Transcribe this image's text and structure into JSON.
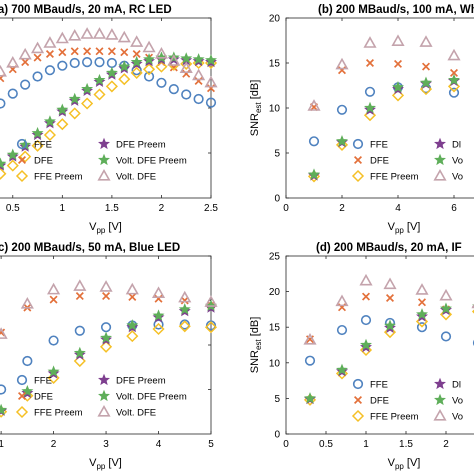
{
  "colors": {
    "FFE": "#4f82bf",
    "DFE": "#e3703a",
    "FFE Preem": "#f5c026",
    "DFE Preem": "#7e3f8f",
    "Volt. DFE Preem": "#5fae5a",
    "Volt. DFE": "#c4a3ac"
  },
  "chart_data": [
    {
      "type": "scatter",
      "title": "(a) 700 MBaud/s, 20 mA, RC LED",
      "xlabel": "V",
      "xlabel_sub": "pp",
      "xlabel_unit": " [V]",
      "ylabel": "",
      "xlim": [
        0.25,
        2.5
      ],
      "ylim": [
        0,
        20
      ],
      "xticks": [
        0.5,
        1,
        1.5,
        2,
        2.5
      ],
      "xtick_labels": [
        "0.5",
        "1",
        "1.5",
        "2",
        "2.5"
      ],
      "legend": [
        "FFE",
        "DFE",
        "FFE Preem",
        "DFE Preem",
        "Volt. DFE Preem",
        "Volt. DFE"
      ],
      "series": [
        {
          "name": "FFE",
          "x": [
            0.25,
            0.375,
            0.5,
            0.625,
            0.75,
            0.875,
            1.0,
            1.125,
            1.25,
            1.375,
            1.5,
            1.625,
            1.75,
            1.875,
            2.0,
            2.125,
            2.25,
            2.375,
            2.5
          ],
          "y": [
            9.3,
            10.5,
            11.6,
            12.6,
            13.5,
            14.2,
            14.7,
            15.0,
            15.1,
            15.1,
            15.0,
            14.7,
            14.2,
            13.5,
            12.8,
            12.1,
            11.5,
            11.0,
            10.6
          ]
        },
        {
          "name": "DFE",
          "x": [
            0.25,
            0.375,
            0.5,
            0.625,
            0.75,
            0.875,
            1.0,
            1.125,
            1.25,
            1.375,
            1.5,
            1.625,
            1.75,
            1.875,
            2.0,
            2.125,
            2.25,
            2.375,
            2.5
          ],
          "y": [
            12.0,
            13.3,
            14.3,
            15.1,
            15.6,
            16.0,
            16.2,
            16.3,
            16.3,
            16.3,
            16.3,
            16.2,
            16.0,
            15.6,
            15.1,
            14.5,
            13.8,
            13.0,
            12.2
          ]
        },
        {
          "name": "FFE Preem",
          "x": [
            0.375,
            0.5,
            0.625,
            0.75,
            0.875,
            1.0,
            1.125,
            1.25,
            1.375,
            1.5,
            1.625,
            1.75,
            1.875,
            2.0,
            2.125,
            2.25,
            2.375,
            2.5
          ],
          "y": [
            2.7,
            3.6,
            4.6,
            5.8,
            7.0,
            8.2,
            9.4,
            10.5,
            11.5,
            12.4,
            13.2,
            13.9,
            14.3,
            14.6,
            14.8,
            14.9,
            15.0,
            15.0
          ]
        },
        {
          "name": "DFE Preem",
          "x": [
            0.375,
            0.5,
            0.625,
            0.75,
            0.875,
            1.0,
            1.125,
            1.25,
            1.375,
            1.5,
            1.625,
            1.75,
            1.875,
            2.0,
            2.125,
            2.25,
            2.375,
            2.5
          ],
          "y": [
            3.6,
            4.6,
            5.7,
            7.0,
            8.3,
            9.6,
            10.8,
            11.9,
            12.9,
            13.7,
            14.4,
            14.9,
            15.2,
            15.4,
            15.4,
            15.3,
            15.2,
            15.1
          ]
        },
        {
          "name": "Volt. DFE Preem",
          "x": [
            0.375,
            0.5,
            0.625,
            0.75,
            0.875,
            1.0,
            1.125,
            1.25,
            1.375,
            1.5,
            1.625,
            1.75,
            1.875,
            2.0,
            2.125,
            2.25,
            2.375,
            2.5
          ],
          "y": [
            3.8,
            4.8,
            5.9,
            7.2,
            8.5,
            9.8,
            11.0,
            12.1,
            13.1,
            13.9,
            14.6,
            15.1,
            15.4,
            15.6,
            15.6,
            15.5,
            15.4,
            15.3
          ]
        },
        {
          "name": "Volt. DFE",
          "x": [
            0.25,
            0.375,
            0.5,
            0.625,
            0.75,
            0.875,
            1.0,
            1.125,
            1.25,
            1.375,
            1.5,
            1.625,
            1.75,
            1.875,
            2.0,
            2.125,
            2.25,
            2.375,
            2.5
          ],
          "y": [
            12.6,
            14.0,
            15.0,
            15.9,
            16.6,
            17.2,
            17.7,
            18.0,
            18.2,
            18.2,
            18.1,
            17.8,
            17.3,
            16.7,
            16.0,
            15.2,
            14.4,
            13.6,
            12.8
          ]
        }
      ]
    },
    {
      "type": "scatter",
      "title": "(b) 200 MBaud/s, 100 mA, Wh",
      "xlabel": "V",
      "xlabel_sub": "pp",
      "xlabel_unit": " [V]",
      "ylabel": "SNR",
      "ylabel_sub": "est",
      "ylabel_unit": " [dB]",
      "xlim": [
        0,
        8
      ],
      "ylim": [
        0,
        20
      ],
      "xticks": [
        0,
        2,
        4,
        6
      ],
      "xtick_labels": [
        "0",
        "2",
        "4",
        "6"
      ],
      "yticks": [
        0,
        5,
        10,
        15,
        20
      ],
      "ytick_labels": [
        "0",
        "5",
        "10",
        "15",
        "20"
      ],
      "legend": [
        "FFE",
        "DFE",
        "FFE Preem",
        "Dl",
        "Volt. DFE Preem",
        "Vo",
        "Volt. DFE",
        "Vo"
      ],
      "series": [
        {
          "name": "FFE",
          "x": [
            1,
            2,
            3,
            4,
            5,
            6,
            7
          ],
          "y": [
            6.3,
            9.8,
            11.8,
            12.3,
            12.2,
            11.7,
            11.2
          ]
        },
        {
          "name": "DFE",
          "x": [
            1,
            2,
            3,
            4,
            5,
            6,
            7
          ],
          "y": [
            10.1,
            14.2,
            15.0,
            14.9,
            14.6,
            13.9,
            13.3
          ]
        },
        {
          "name": "FFE Preem",
          "x": [
            1,
            2,
            3,
            4,
            5,
            6,
            7
          ],
          "y": [
            2.4,
            5.9,
            9.2,
            11.4,
            12.1,
            12.4,
            12.2
          ]
        },
        {
          "name": "DFE Preem",
          "x": [
            1,
            2,
            3,
            4,
            5,
            6,
            7
          ],
          "y": [
            2.5,
            6.2,
            9.8,
            12.1,
            12.7,
            13.0,
            12.8
          ]
        },
        {
          "name": "Volt. DFE Preem",
          "x": [
            1,
            2,
            3,
            4,
            5,
            6,
            7
          ],
          "y": [
            2.6,
            6.3,
            10.0,
            12.3,
            12.8,
            13.1,
            12.9
          ]
        },
        {
          "name": "Volt. DFE",
          "x": [
            1,
            2,
            3,
            4,
            5,
            6,
            7
          ],
          "y": [
            10.2,
            14.8,
            17.2,
            17.4,
            17.3,
            15.8,
            14.5
          ]
        }
      ]
    },
    {
      "type": "scatter",
      "title": "c) 200 MBaud/s, 50 mA, Blue LED",
      "xlabel": "V",
      "xlabel_sub": "pp",
      "xlabel_unit": " [V]",
      "ylabel": "",
      "xlim": [
        0.75,
        5
      ],
      "ylim": [
        0,
        20
      ],
      "xticks": [
        1,
        2,
        3,
        4,
        5
      ],
      "xtick_labels": [
        "1",
        "2",
        "3",
        "4",
        "5"
      ],
      "legend": [
        "FFE",
        "DFE",
        "FFE Preem",
        "DFE Preem",
        "Volt. DFE Preem",
        "Volt. DFE"
      ],
      "series": [
        {
          "name": "FFE",
          "x": [
            1,
            1.5,
            2,
            2.5,
            3,
            3.5,
            4,
            4.5,
            5
          ],
          "y": [
            5.0,
            8.2,
            10.5,
            11.6,
            12.0,
            12.2,
            12.3,
            12.3,
            12.2
          ]
        },
        {
          "name": "DFE",
          "x": [
            1,
            1.5,
            2,
            2.5,
            3,
            3.5,
            4,
            4.5,
            5
          ],
          "y": [
            11.4,
            14.2,
            15.1,
            15.5,
            15.5,
            15.4,
            15.2,
            15.0,
            14.5
          ]
        },
        {
          "name": "FFE Preem",
          "x": [
            1,
            1.5,
            2,
            2.5,
            3,
            3.5,
            4,
            4.5,
            5
          ],
          "y": [
            2.5,
            4.3,
            6.3,
            8.2,
            9.8,
            11.0,
            11.8,
            12.1,
            12.0
          ]
        },
        {
          "name": "DFE Preem",
          "x": [
            1,
            1.5,
            2,
            2.5,
            3,
            3.5,
            4,
            4.5,
            5
          ],
          "y": [
            2.6,
            4.6,
            6.8,
            8.9,
            10.6,
            12.0,
            13.1,
            13.8,
            14.2
          ]
        },
        {
          "name": "Volt. DFE Preem",
          "x": [
            1,
            1.5,
            2,
            2.5,
            3,
            3.5,
            4,
            4.5,
            5
          ],
          "y": [
            2.7,
            4.8,
            7.0,
            9.1,
            10.8,
            12.2,
            13.3,
            14.0,
            14.4
          ]
        },
        {
          "name": "Volt. DFE",
          "x": [
            1,
            1.5,
            2,
            2.5,
            3,
            3.5,
            4,
            4.5,
            5
          ],
          "y": [
            11.2,
            14.6,
            16.2,
            16.6,
            16.5,
            16.2,
            15.8,
            15.3,
            14.8
          ]
        }
      ]
    },
    {
      "type": "scatter",
      "title": "(d) 200 MBaud/s, 20 mA, IF",
      "xlabel": "V",
      "xlabel_sub": "pp",
      "xlabel_unit": " [V]",
      "ylabel": "SNR",
      "ylabel_sub": "est",
      "ylabel_unit": " [dB]",
      "xlim": [
        0,
        2.8
      ],
      "ylim": [
        0,
        25
      ],
      "xticks": [
        0,
        0.5,
        1,
        1.5,
        2,
        2.5
      ],
      "xtick_labels": [
        "0",
        "0.5",
        "1",
        "1.5",
        "2",
        "2.5"
      ],
      "yticks": [
        0,
        5,
        10,
        15,
        20,
        25
      ],
      "ytick_labels": [
        "0",
        "5",
        "10",
        "15",
        "20",
        "25"
      ],
      "legend": [
        "FFE",
        "DFE",
        "FFE Preem",
        "Dl",
        "Volt. DFE Preem",
        "Vo",
        "Volt. DFE",
        "Vo"
      ],
      "series": [
        {
          "name": "FFE",
          "x": [
            0.3,
            0.7,
            1.0,
            1.3,
            1.7,
            2.0,
            2.4,
            2.7
          ],
          "y": [
            10.3,
            14.6,
            16.0,
            15.6,
            15.0,
            13.7,
            12.8,
            12.0
          ]
        },
        {
          "name": "DFE",
          "x": [
            0.3,
            0.7,
            1.0,
            1.3,
            1.7,
            2.0,
            2.4,
            2.7
          ],
          "y": [
            13.3,
            17.8,
            19.3,
            19.1,
            18.5,
            17.5,
            16.5,
            15.8
          ]
        },
        {
          "name": "FFE Preem",
          "x": [
            0.3,
            0.7,
            1.0,
            1.3,
            1.7,
            2.0,
            2.4,
            2.7
          ],
          "y": [
            4.8,
            8.5,
            11.8,
            14.3,
            15.8,
            16.8,
            17.2,
            17.3
          ]
        },
        {
          "name": "DFE Preem",
          "x": [
            0.3,
            0.7,
            1.0,
            1.3,
            1.7,
            2.0,
            2.4,
            2.7
          ],
          "y": [
            4.9,
            8.8,
            12.2,
            14.9,
            16.5,
            17.4,
            17.7,
            17.8
          ]
        },
        {
          "name": "Volt. DFE Preem",
          "x": [
            0.3,
            0.7,
            1.0,
            1.3,
            1.7,
            2.0,
            2.4,
            2.7
          ],
          "y": [
            5.0,
            9.0,
            12.5,
            15.2,
            16.8,
            17.6,
            17.9,
            18.0
          ]
        },
        {
          "name": "Volt. DFE",
          "x": [
            0.3,
            0.7,
            1.0,
            1.3,
            1.7,
            2.0,
            2.4,
            2.7
          ],
          "y": [
            13.2,
            18.6,
            21.5,
            21.0,
            20.2,
            19.4,
            18.3,
            17.6
          ]
        }
      ]
    }
  ]
}
